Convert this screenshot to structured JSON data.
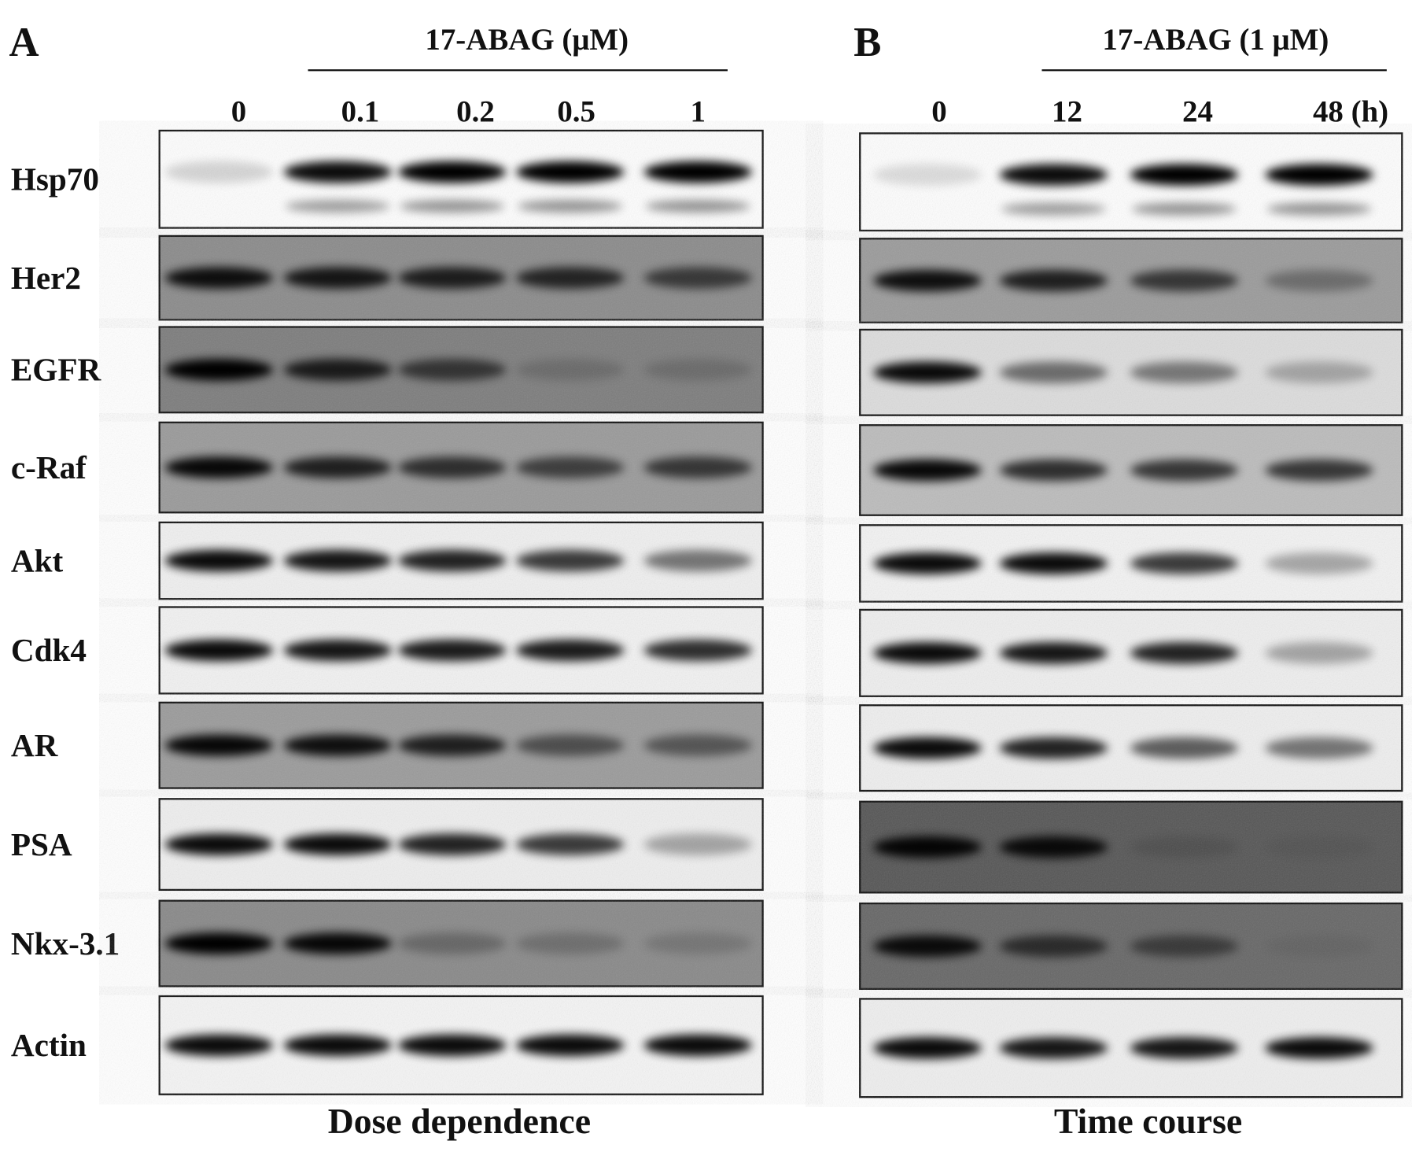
{
  "panels": [
    {
      "letter": "A",
      "treatment": "17-ABAG (μM)",
      "lanes": [
        "0",
        "0.1",
        "0.2",
        "0.5",
        "1"
      ],
      "caption": "Dose dependence"
    },
    {
      "letter": "B",
      "treatment": "17-ABAG (1 μM)",
      "lanes": [
        "0",
        "12",
        "24",
        "48 (h)"
      ],
      "caption": "Time course"
    }
  ],
  "proteins": [
    "Hsp70",
    "Her2",
    "EGFR",
    "c-Raf",
    "Akt",
    "Cdk4",
    "AR",
    "PSA",
    "Nkx-3.1",
    "Actin"
  ]
}
